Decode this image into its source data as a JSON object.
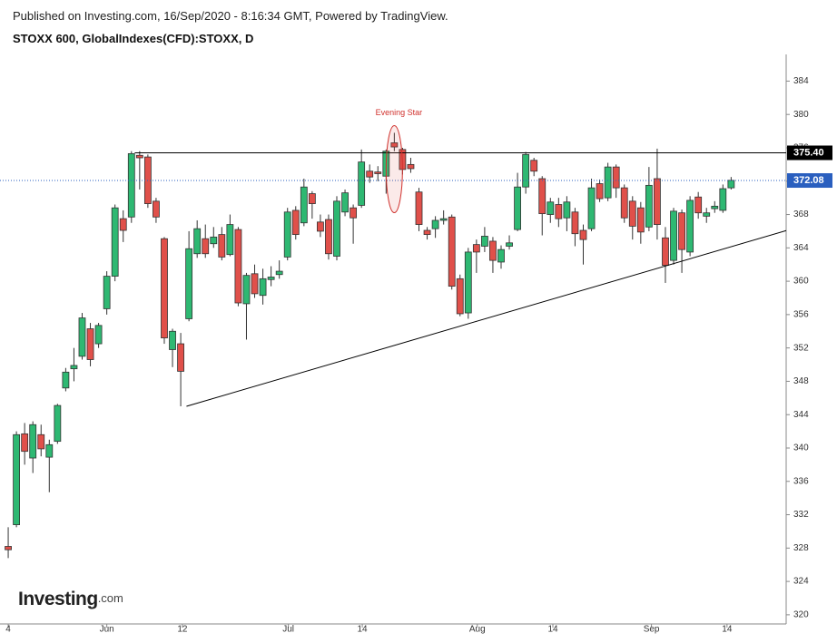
{
  "chart_data": {
    "type": "candlestick",
    "header": "Published on Investing.com, 16/Sep/2020 - 8:16:34 GMT, Powered by TradingView.",
    "title": "STOXX 600, GlobalIndexes(CFD):STOXX, D",
    "logo": {
      "brand": "Investing",
      "suffix": ".com"
    },
    "annotation": {
      "text": "Evening Star",
      "index": 47,
      "color": "#d0312d"
    },
    "up_color": "#2eb872",
    "down_color": "#e0504a",
    "open": [
      328.2,
      330.8,
      341.7,
      338.8,
      341.6,
      338.9,
      340.8,
      347.2,
      349.5,
      351.0,
      354.3,
      352.5,
      356.7,
      360.6,
      367.5,
      367.7,
      375.1,
      374.9,
      369.6,
      365.1,
      351.8,
      352.5,
      355.5,
      363.3,
      365.1,
      364.5,
      365.6,
      363.2,
      366.2,
      357.3,
      360.9,
      358.3,
      360.2,
      360.8,
      362.9,
      368.5,
      367.0,
      370.5,
      367.1,
      367.4,
      363.0,
      368.3,
      368.8,
      369.1,
      373.2,
      373.1,
      372.6,
      376.6,
      375.8,
      374.0,
      370.7,
      366.1,
      366.3,
      367.3,
      367.7,
      360.3,
      356.2,
      364.4,
      364.2,
      364.8,
      362.3,
      364.2,
      366.2,
      371.3,
      374.5,
      372.3,
      368.0,
      369.2,
      367.6,
      368.3,
      366.1,
      366.3,
      371.7,
      370.0,
      373.7,
      371.2,
      369.6,
      368.8,
      366.5,
      372.3,
      365.2,
      362.5,
      368.2,
      363.5,
      370.1,
      367.8,
      368.7,
      368.5,
      371.2
    ],
    "high": [
      330.5,
      342.0,
      343.0,
      343.2,
      342.8,
      341.0,
      345.3,
      349.6,
      352.0,
      356.2,
      355.0,
      355.0,
      361.2,
      369.2,
      368.5,
      375.6,
      375.6,
      375.2,
      370.0,
      365.3,
      354.3,
      353.8,
      366.0,
      367.3,
      366.8,
      366.5,
      366.5,
      368.0,
      366.5,
      361.0,
      362.0,
      361.5,
      361.8,
      362.5,
      368.8,
      369.0,
      372.3,
      370.8,
      368.0,
      368.0,
      370.2,
      371.0,
      369.2,
      375.8,
      374.0,
      373.8,
      375.8,
      377.8,
      376.0,
      374.8,
      371.2,
      366.5,
      367.8,
      368.5,
      368.0,
      360.8,
      364.0,
      365.0,
      366.5,
      365.3,
      364.3,
      365.5,
      373.0,
      375.5,
      374.8,
      372.6,
      370.0,
      370.0,
      370.2,
      368.8,
      366.8,
      372.3,
      372.2,
      374.2,
      374.0,
      371.6,
      370.2,
      369.5,
      373.7,
      375.9,
      366.5,
      368.8,
      368.6,
      370.2,
      370.7,
      368.8,
      369.6,
      371.6,
      372.5
    ],
    "low": [
      326.8,
      330.5,
      338.0,
      337.0,
      339.0,
      334.7,
      340.5,
      346.8,
      348.0,
      350.6,
      349.8,
      352.0,
      356.0,
      360.0,
      364.7,
      367.0,
      371.0,
      368.8,
      367.0,
      352.5,
      349.7,
      345.0,
      355.2,
      362.8,
      362.8,
      364.0,
      362.5,
      363.0,
      357.0,
      353.0,
      358.0,
      357.2,
      359.4,
      360.3,
      362.5,
      365.0,
      366.6,
      367.5,
      365.3,
      362.6,
      362.5,
      367.8,
      364.5,
      368.8,
      371.8,
      372.0,
      370.5,
      375.6,
      372.8,
      373.0,
      366.0,
      365.0,
      365.2,
      366.8,
      359.0,
      355.8,
      355.5,
      361.0,
      363.5,
      361.0,
      361.5,
      363.8,
      366.0,
      370.5,
      372.6,
      365.5,
      367.0,
      366.5,
      366.0,
      364.2,
      362.0,
      366.0,
      369.5,
      369.6,
      370.0,
      367.0,
      365.0,
      364.5,
      366.0,
      365.0,
      359.8,
      362.0,
      361.0,
      363.0,
      367.5,
      367.0,
      368.2,
      368.2,
      371.0
    ],
    "close": [
      327.8,
      341.6,
      339.6,
      342.8,
      339.9,
      340.4,
      345.1,
      349.1,
      349.9,
      355.6,
      350.6,
      354.7,
      360.6,
      368.8,
      366.1,
      375.3,
      374.8,
      369.3,
      367.7,
      353.2,
      354.0,
      349.2,
      363.9,
      366.3,
      363.3,
      365.3,
      362.9,
      366.8,
      357.4,
      360.7,
      358.5,
      360.3,
      360.5,
      361.2,
      368.3,
      365.6,
      371.3,
      369.3,
      366.0,
      363.3,
      369.6,
      370.6,
      367.6,
      374.3,
      372.5,
      372.9,
      375.6,
      376.1,
      373.4,
      373.5,
      366.8,
      365.6,
      367.3,
      367.5,
      359.4,
      356.1,
      363.5,
      363.5,
      365.4,
      362.5,
      363.8,
      364.6,
      371.3,
      375.2,
      373.2,
      368.1,
      369.5,
      367.5,
      369.5,
      365.7,
      365.0,
      371.2,
      369.9,
      373.7,
      371.2,
      367.6,
      366.6,
      365.9,
      371.5,
      366.8,
      361.9,
      368.4,
      363.8,
      369.7,
      368.2,
      368.2,
      369.0,
      371.1,
      372.1
    ],
    "xlim": [
      -1,
      94.7
    ],
    "xticks": [
      {
        "value": 0,
        "label": "4"
      },
      {
        "value": 12,
        "label": "Jun"
      },
      {
        "value": 21.2,
        "label": "12"
      },
      {
        "value": 34.1,
        "label": "Jul"
      },
      {
        "value": 43.1,
        "label": "14"
      },
      {
        "value": 57.1,
        "label": "Aug"
      },
      {
        "value": 66.3,
        "label": "14"
      },
      {
        "value": 78.3,
        "label": "Sep"
      },
      {
        "value": 87.5,
        "label": "14"
      }
    ],
    "ylim": [
      318.9,
      387.2
    ],
    "yticks": [
      320,
      324,
      328,
      332,
      336,
      340,
      344,
      348,
      352,
      356,
      360,
      364,
      368,
      372,
      376,
      380,
      384
    ],
    "lines": [
      {
        "x": [
          15.4,
          94.7
        ],
        "y": [
          375.4,
          375.4
        ],
        "color": "#000000"
      },
      {
        "x": [
          21.7,
          94.7
        ],
        "y": [
          345.0,
          366.07
        ],
        "color": "#000000"
      }
    ],
    "price_labels": [
      {
        "value": 375.4,
        "label": "375.40",
        "color": "#000000",
        "dotted": false
      },
      {
        "value": 372.08,
        "label": "372.08",
        "color": "#2a5fbf",
        "dotted": true
      }
    ]
  }
}
